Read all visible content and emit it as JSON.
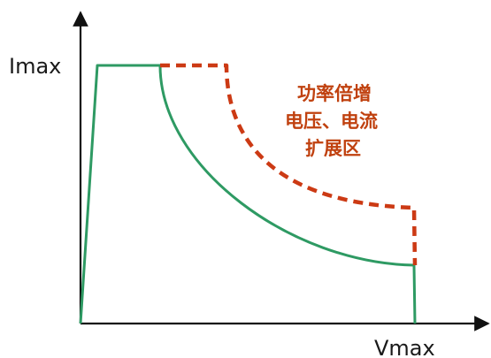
{
  "labels": {
    "y_axis": "Imax",
    "x_axis": "Vmax",
    "region_line1": "功率倍增",
    "region_line2": "电压、电流",
    "region_line3": "扩展区"
  },
  "colors": {
    "axis": "#111111",
    "standard_curve": "#2e9a63",
    "extended_curve": "#cc3a14",
    "region_text": "#c0410f"
  }
}
